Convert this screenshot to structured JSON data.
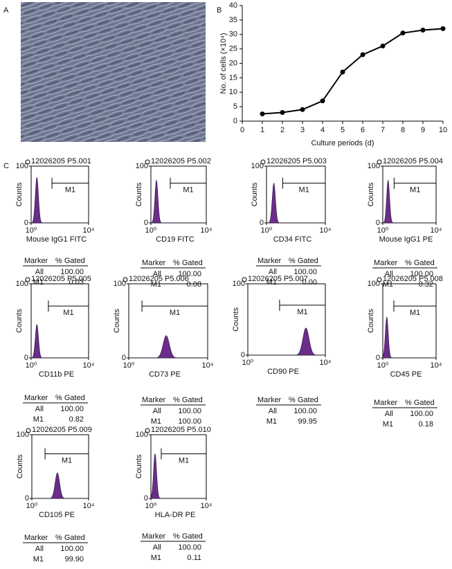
{
  "labels": [
    "A",
    "B",
    "C"
  ],
  "chart_data": [
    {
      "type": "line",
      "x": [
        1,
        2,
        3,
        4,
        5,
        6,
        7,
        8,
        9,
        10
      ],
      "values": [
        2.5,
        3,
        4,
        7,
        17,
        23,
        26,
        30.5,
        31.5,
        32
      ],
      "color": "#000000",
      "xlim": [
        0,
        10
      ],
      "xticks": [
        0,
        1,
        2,
        3,
        4,
        5,
        6,
        7,
        8,
        9,
        10
      ],
      "ylim": [
        0,
        40
      ],
      "yticks": [
        0,
        5,
        10,
        15,
        20,
        25,
        30,
        35,
        40
      ],
      "xlabel": "Culture periods (d)",
      "ylabel": "No. of cells (×10⁴)",
      "grid": false
    },
    {
      "type": "density",
      "title": "12026205 P5.001",
      "xlabel": "Mouse IgG1 FITC",
      "ylabel": "Counts",
      "log_x": true,
      "xlim": [
        1,
        10000
      ],
      "xticks": [
        {
          "value": 1,
          "label": "10⁰"
        },
        {
          "value": 10000,
          "label": "10⁴"
        }
      ],
      "ylim": [
        0,
        100
      ],
      "yticks": [
        0,
        100
      ],
      "color": "#6b2d8a",
      "peak": {
        "x": 0.4,
        "y": 80
      },
      "gate": {
        "label": "M1",
        "from": 1.45,
        "to": 4
      }
    },
    {
      "type": "density",
      "title": "12026205 P5.002",
      "xlabel": "CD19 FITC",
      "ylabel": "Counts",
      "log_x": true,
      "xlim": [
        1,
        10000
      ],
      "xticks": [
        {
          "value": 1,
          "label": "10⁰"
        },
        {
          "value": 10000,
          "label": "10⁴"
        }
      ],
      "ylim": [
        0,
        100
      ],
      "yticks": [
        0,
        100
      ],
      "color": "#6b2d8a",
      "peak": {
        "x": 0.4,
        "y": 75
      },
      "gate": {
        "label": "M1",
        "from": 1.4,
        "to": 4
      }
    },
    {
      "type": "density",
      "title": "12026205 P5.003",
      "xlabel": "CD34 FITC",
      "ylabel": "Counts",
      "log_x": true,
      "xlim": [
        1,
        10000
      ],
      "xticks": [
        {
          "value": 1,
          "label": "10⁰"
        },
        {
          "value": 10000,
          "label": "10⁴"
        }
      ],
      "ylim": [
        0,
        100
      ],
      "yticks": [
        0,
        100
      ],
      "color": "#6b2d8a",
      "peak": {
        "x": 0.5,
        "y": 70
      },
      "gate": {
        "label": "M1",
        "from": 1.1,
        "to": 4
      }
    },
    {
      "type": "density",
      "title": "12026205 P5.004",
      "xlabel": "Mouse IgG1 PE",
      "ylabel": "Counts",
      "log_x": true,
      "xlim": [
        1,
        10000
      ],
      "xticks": [
        {
          "value": 1,
          "label": "10⁰"
        },
        {
          "value": 10000,
          "label": "10⁴"
        }
      ],
      "ylim": [
        0,
        100
      ],
      "yticks": [
        0,
        100
      ],
      "color": "#6b2d8a",
      "peak": {
        "x": 0.4,
        "y": 75
      },
      "gate": {
        "label": "M1",
        "from": 0.85,
        "to": 4
      }
    },
    {
      "type": "density",
      "title": "12026205 P5.005",
      "xlabel": "CD11b PE",
      "ylabel": "Counts",
      "log_x": true,
      "xlim": [
        1,
        10000
      ],
      "xticks": [
        {
          "value": 1,
          "label": "10⁰"
        },
        {
          "value": 10000,
          "label": "10⁴"
        }
      ],
      "ylim": [
        0,
        100
      ],
      "yticks": [
        0,
        100
      ],
      "color": "#6b2d8a",
      "peak": {
        "x": 0.4,
        "y": 45
      },
      "gate": {
        "label": "M1",
        "from": 1.2,
        "to": 4
      }
    },
    {
      "type": "density",
      "title": "12026205 P5.006",
      "xlabel": "CD73 PE",
      "ylabel": "Counts",
      "log_x": true,
      "xlim": [
        1,
        10000
      ],
      "xticks": [
        {
          "value": 1,
          "label": "10⁰"
        },
        {
          "value": 10000,
          "label": "10⁴"
        }
      ],
      "ylim": [
        0,
        100
      ],
      "yticks": [
        0,
        100
      ],
      "color": "#6b2d8a",
      "peak": {
        "x": 1.9,
        "y": 30
      },
      "gate": {
        "label": "M1",
        "from": 0.67,
        "to": 4
      }
    },
    {
      "type": "density",
      "title": "12026205 P5.007",
      "xlabel": "CD90 PE",
      "ylabel": "Counts",
      "log_x": true,
      "xlim": [
        1,
        10000
      ],
      "xticks": [
        {
          "value": 1,
          "label": "10⁰"
        },
        {
          "value": 10000,
          "label": "10⁴"
        }
      ],
      "ylim": [
        0,
        100
      ],
      "yticks": [
        0,
        100
      ],
      "color": "#6b2d8a",
      "peak": {
        "x": 3.0,
        "y": 38
      },
      "gate": {
        "label": "M1",
        "from": 1.64,
        "to": 4
      }
    },
    {
      "type": "density",
      "title": "12026205 P5.008",
      "xlabel": "CD45 PE",
      "ylabel": "Counts",
      "log_x": true,
      "xlim": [
        1,
        10000
      ],
      "xticks": [
        {
          "value": 1,
          "label": "10⁰"
        },
        {
          "value": 10000,
          "label": "10⁴"
        }
      ],
      "ylim": [
        0,
        100
      ],
      "yticks": [
        0,
        100
      ],
      "color": "#6b2d8a",
      "peak": {
        "x": 0.3,
        "y": 55
      },
      "gate": {
        "label": "M1",
        "from": 0.83,
        "to": 4
      }
    },
    {
      "type": "density",
      "title": "12026205 P5.009",
      "xlabel": "CD105 PE",
      "ylabel": "Counts",
      "log_x": true,
      "xlim": [
        1,
        10000
      ],
      "xticks": [
        {
          "value": 1,
          "label": "10⁰"
        },
        {
          "value": 10000,
          "label": "10⁴"
        }
      ],
      "ylim": [
        0,
        100
      ],
      "yticks": [
        0,
        100
      ],
      "color": "#6b2d8a",
      "peak": {
        "x": 1.8,
        "y": 40
      },
      "gate": {
        "label": "M1",
        "from": 0.93,
        "to": 4
      }
    },
    {
      "type": "density",
      "title": "12026205 P5.010",
      "xlabel": "HLA-DR PE",
      "ylabel": "Counts",
      "log_x": true,
      "xlim": [
        1,
        10000
      ],
      "xticks": [
        {
          "value": 1,
          "label": "10⁰"
        },
        {
          "value": 10000,
          "label": "10⁴"
        }
      ],
      "ylim": [
        0,
        100
      ],
      "yticks": [
        0,
        100
      ],
      "color": "#6b2d8a",
      "peak": {
        "x": 0.3,
        "y": 70
      },
      "gate": {
        "label": "M1",
        "from": 0.75,
        "to": 4
      }
    }
  ],
  "tables": [
    {
      "header": [
        "Marker",
        "% Gated"
      ],
      "rows": [
        [
          "All",
          "100.00"
        ],
        [
          "M1",
          "0.03"
        ]
      ]
    },
    {
      "header": [
        "Marker",
        "% Gated"
      ],
      "rows": [
        [
          "All",
          "100.00"
        ],
        [
          "M1",
          "0.08"
        ]
      ]
    },
    {
      "header": [
        "Marker",
        "% Gated"
      ],
      "rows": [
        [
          "All",
          "100.00"
        ],
        [
          "M1",
          "0.00"
        ]
      ]
    },
    {
      "header": [
        "Marker",
        "% Gated"
      ],
      "rows": [
        [
          "All",
          "100.00"
        ],
        [
          "M1",
          "0.32"
        ]
      ]
    },
    {
      "header": [
        "Marker",
        "% Gated"
      ],
      "rows": [
        [
          "All",
          "100.00"
        ],
        [
          "M1",
          "0.82"
        ]
      ]
    },
    {
      "header": [
        "Marker",
        "% Gated"
      ],
      "rows": [
        [
          "All",
          "100.00"
        ],
        [
          "M1",
          "100.00"
        ]
      ]
    },
    {
      "header": [
        "Marker",
        "% Gated"
      ],
      "rows": [
        [
          "All",
          "100.00"
        ],
        [
          "M1",
          "99.95"
        ]
      ]
    },
    {
      "header": [
        "Marker",
        "% Gated"
      ],
      "rows": [
        [
          "All",
          "100.00"
        ],
        [
          "M1",
          "0.18"
        ]
      ]
    },
    {
      "header": [
        "Marker",
        "% Gated"
      ],
      "rows": [
        [
          "All",
          "100.00"
        ],
        [
          "M1",
          "99.90"
        ]
      ]
    },
    {
      "header": [
        "Marker",
        "% Gated"
      ],
      "rows": [
        [
          "All",
          "100.00"
        ],
        [
          "M1",
          "0.11"
        ]
      ]
    }
  ]
}
